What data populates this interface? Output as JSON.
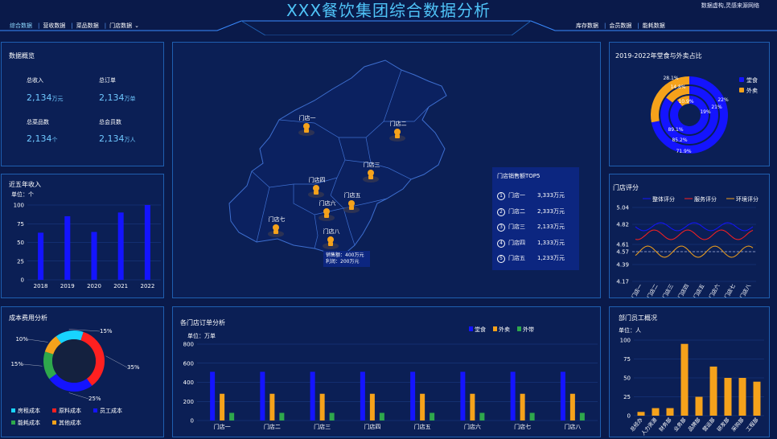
{
  "header": {
    "title": "XXX餐饮集团综合数据分析",
    "note": "数据虚构,灵感来源网络",
    "nav_left": [
      "综合数据",
      "营收数据",
      "菜品数据",
      "门店数据"
    ],
    "nav_right": [
      "库存数据",
      "会员数据",
      "能耗数据"
    ]
  },
  "overview": {
    "title": "数据概览",
    "items": [
      {
        "label": "总收入",
        "value": "2,134",
        "unit": "万元"
      },
      {
        "label": "总订单",
        "value": "2,134",
        "unit": "万单"
      },
      {
        "label": "总菜品数",
        "value": "2,134",
        "unit": "个"
      },
      {
        "label": "总会员数",
        "value": "2,134",
        "unit": "万人"
      }
    ]
  },
  "income": {
    "title": "近五年收入",
    "unit": "单位：个",
    "chart_data": {
      "type": "bar",
      "categories": [
        "2018",
        "2019",
        "2020",
        "2021",
        "2022"
      ],
      "values": [
        63,
        85,
        64,
        90,
        100
      ],
      "ylim": [
        0,
        100
      ],
      "yticks": [
        "0",
        "25",
        "50",
        "75",
        "100"
      ],
      "color": "#1414ff"
    }
  },
  "cost": {
    "title": "成本费用分析",
    "chart_data": {
      "type": "pie",
      "labels": [
        "房租成本",
        "原料成本",
        "员工成本",
        "能耗成本",
        "其他成本"
      ],
      "values": [
        15,
        35,
        25,
        15,
        10
      ],
      "percent_labels": [
        "15%",
        "35%",
        "25%",
        "15%",
        "10%"
      ],
      "colors": [
        "#18d4ff",
        "#ff2020",
        "#1414ff",
        "#2ea84c",
        "#f5a21b"
      ]
    }
  },
  "map": {
    "stores": [
      "门店一",
      "门店二",
      "门店三",
      "门店四",
      "门店五",
      "门店六",
      "门店七",
      "门店八"
    ],
    "tooltip": {
      "line1": "销售额：400万元",
      "line2": "利润：200万元"
    },
    "top5": {
      "title": "门店销售额TOP5",
      "rows": [
        {
          "rank": "1",
          "name": "门店一",
          "value": "3,333万元"
        },
        {
          "rank": "2",
          "name": "门店二",
          "value": "2,333万元"
        },
        {
          "rank": "3",
          "name": "门店三",
          "value": "2,133万元"
        },
        {
          "rank": "4",
          "name": "门店四",
          "value": "1,333万元"
        },
        {
          "rank": "5",
          "name": "门店五",
          "value": "1,233万元"
        }
      ]
    }
  },
  "orders": {
    "title": "各门店订单分析",
    "unit": "单位：万单",
    "chart_data": {
      "type": "bar",
      "categories": [
        "门店一",
        "门店二",
        "门店三",
        "门店四",
        "门店五",
        "门店六",
        "门店七",
        "门店八"
      ],
      "series": [
        {
          "name": "堂食",
          "values": [
            510,
            510,
            510,
            510,
            510,
            510,
            510,
            510
          ],
          "color": "#1414ff"
        },
        {
          "name": "外卖",
          "values": [
            280,
            280,
            280,
            280,
            280,
            280,
            280,
            280
          ],
          "color": "#f5a21b"
        },
        {
          "name": "外带",
          "values": [
            80,
            80,
            80,
            80,
            80,
            80,
            80,
            80
          ],
          "color": "#2ea84c"
        }
      ],
      "ylim": [
        0,
        800
      ],
      "yticks": [
        "0",
        "200",
        "400",
        "600",
        "800"
      ]
    }
  },
  "ratio": {
    "title": "2019-2022年堂食与外卖占比",
    "chart_data": {
      "type": "pie",
      "legend": [
        "堂食",
        "外卖"
      ],
      "colors": [
        "#1414ff",
        "#f5a21b"
      ],
      "rings": [
        {
          "dine": 71.9,
          "takeout": 28.1,
          "labels": [
            "71.9%",
            "28.1%"
          ]
        },
        {
          "dine": 85.2,
          "takeout": 14.8,
          "labels": [
            "85.2%",
            "14.8%"
          ]
        },
        {
          "dine": 89.1,
          "takeout": 10.9,
          "labels": [
            "89.1%",
            "10.9%"
          ]
        }
      ],
      "inner_labels": [
        "22%",
        "21%",
        "19%"
      ]
    }
  },
  "rating": {
    "title": "门店评分",
    "chart_data": {
      "type": "line",
      "categories": [
        "门店一",
        "门店二",
        "门店三",
        "门店四",
        "门店五",
        "门店六",
        "门店七",
        "门店八"
      ],
      "series": [
        {
          "name": "整体评分",
          "color": "#1414ff"
        },
        {
          "name": "服务评分",
          "color": "#ff2020"
        },
        {
          "name": "环境评分",
          "color": "#f5a21b"
        }
      ],
      "yticks": [
        "5.04",
        "4.82",
        "4.61",
        "4.57",
        "4.39",
        "4.17"
      ],
      "ylim": [
        4.17,
        5.04
      ],
      "reference": 4.57
    }
  },
  "staff": {
    "title": "部门员工概况",
    "unit": "单位：人",
    "chart_data": {
      "type": "bar",
      "categories": [
        "总经办",
        "人力资源",
        "财务部",
        "业务部",
        "品牌部",
        "营运部",
        "研发部",
        "采购部",
        "工程部"
      ],
      "values": [
        5,
        10,
        10,
        95,
        25,
        65,
        50,
        50,
        45
      ],
      "ylim": [
        0,
        100
      ],
      "yticks": [
        "0",
        "25",
        "50",
        "75",
        "100"
      ],
      "color": "#f5a21b"
    }
  }
}
